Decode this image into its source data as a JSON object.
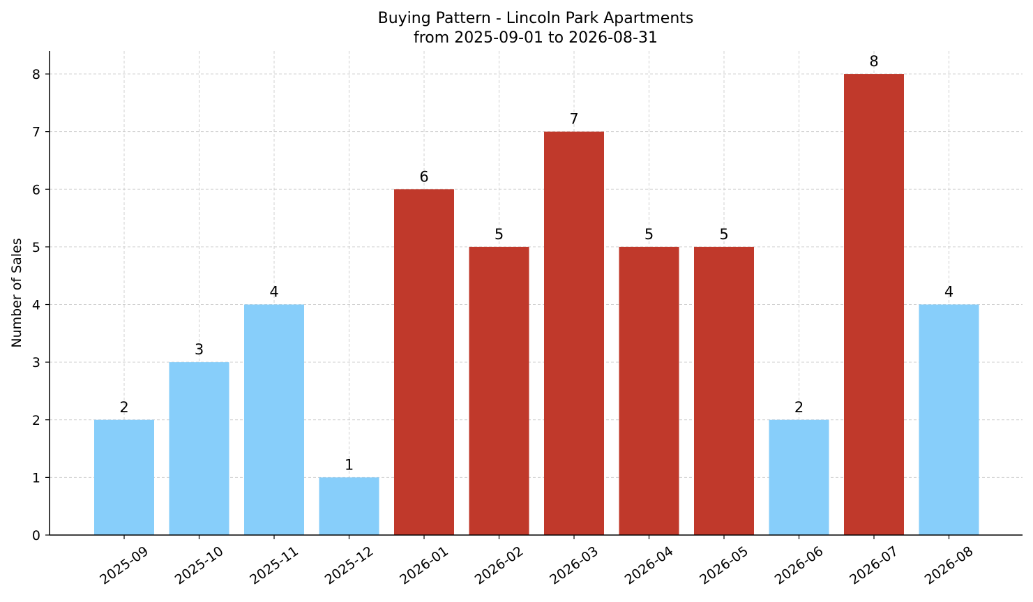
{
  "chart_data": {
    "type": "bar",
    "title": "Buying Pattern - Lincoln Park Apartments",
    "subtitle": "from 2025-09-01 to 2026-08-31",
    "xlabel": "",
    "ylabel": "Number of Sales",
    "ylim": [
      0,
      8.4
    ],
    "yticks": [
      0,
      1,
      2,
      3,
      4,
      5,
      6,
      7,
      8
    ],
    "grid": true,
    "categories": [
      "2025-09",
      "2025-10",
      "2025-11",
      "2025-12",
      "2026-01",
      "2026-02",
      "2026-03",
      "2026-04",
      "2026-05",
      "2026-06",
      "2026-07",
      "2026-08"
    ],
    "values": [
      2,
      3,
      4,
      1,
      6,
      5,
      7,
      5,
      5,
      2,
      8,
      4
    ],
    "bar_colors": [
      "#87cefa",
      "#87cefa",
      "#87cefa",
      "#87cefa",
      "#c0392b",
      "#c0392b",
      "#c0392b",
      "#c0392b",
      "#c0392b",
      "#87cefa",
      "#c0392b",
      "#87cefa"
    ]
  }
}
